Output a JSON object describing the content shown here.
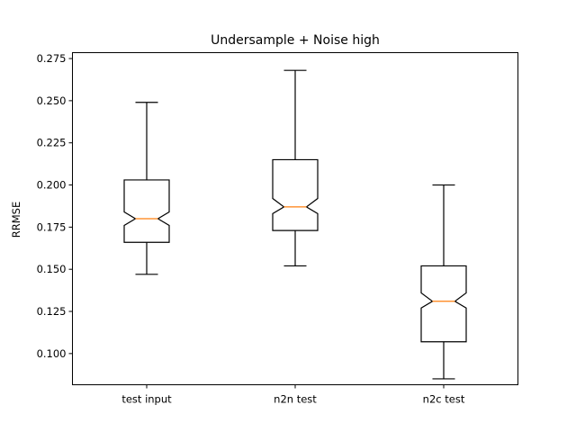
{
  "chart_data": {
    "type": "box",
    "title": "Undersample + Noise high",
    "xlabel": "",
    "ylabel": "RRMSE",
    "ylim": [
      0.0815,
      0.2785
    ],
    "yticks": [
      0.1,
      0.125,
      0.15,
      0.175,
      0.2,
      0.225,
      0.25,
      0.275
    ],
    "ytick_labels": [
      "0.100",
      "0.125",
      "0.150",
      "0.175",
      "0.200",
      "0.225",
      "0.250",
      "0.275"
    ],
    "notched": true,
    "grid": false,
    "categories": [
      "test input",
      "n2n test",
      "n2c test"
    ],
    "boxes": [
      {
        "category": "test input",
        "whisker_low": 0.147,
        "q1": 0.166,
        "median": 0.18,
        "q3": 0.203,
        "whisker_high": 0.249,
        "notch_low": 0.176,
        "notch_high": 0.184
      },
      {
        "category": "n2n test",
        "whisker_low": 0.152,
        "q1": 0.173,
        "median": 0.187,
        "q3": 0.215,
        "whisker_high": 0.268,
        "notch_low": 0.183,
        "notch_high": 0.192
      },
      {
        "category": "n2c test",
        "whisker_low": 0.085,
        "q1": 0.107,
        "median": 0.131,
        "q3": 0.152,
        "whisker_high": 0.2,
        "notch_low": 0.127,
        "notch_high": 0.136
      }
    ],
    "colors": {
      "box": "#000000",
      "median": "#ff7f0e"
    }
  }
}
